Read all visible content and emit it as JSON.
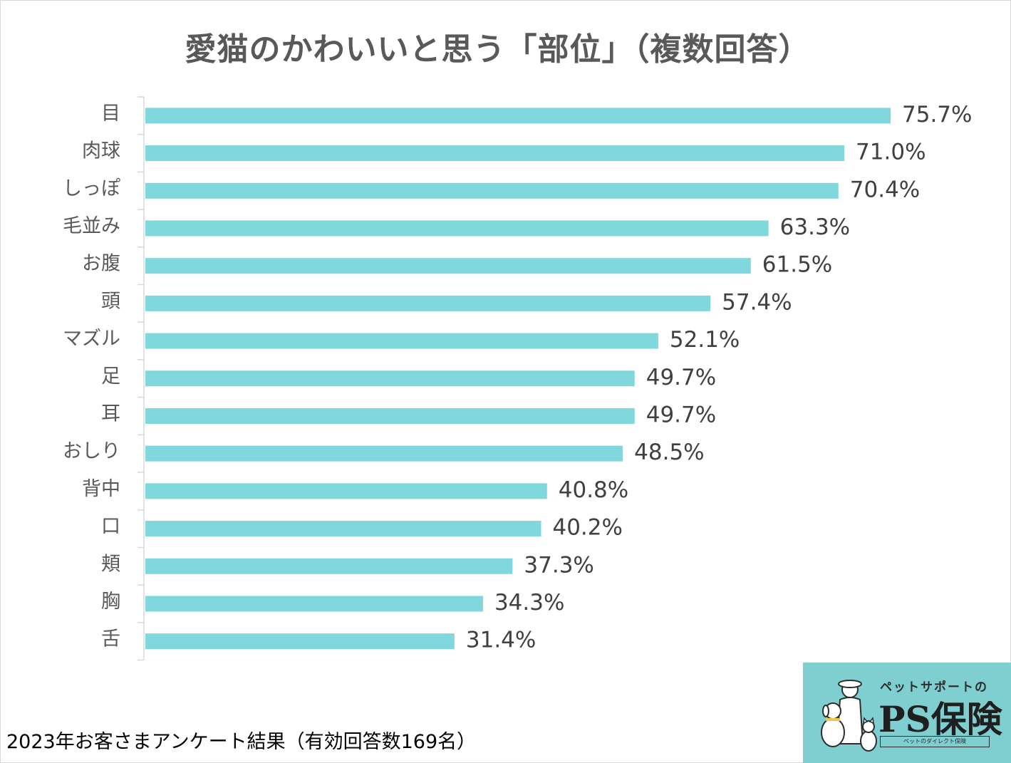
{
  "chart_data": {
    "type": "bar",
    "orientation": "horizontal",
    "title": "愛猫のかわいいと思う「部位」（複数回答）",
    "categories": [
      "目",
      "肉球",
      "しっぽ",
      "毛並み",
      "お腹",
      "頭",
      "マズル",
      "足",
      "耳",
      "おしり",
      "背中",
      "口",
      "頬",
      "胸",
      "舌"
    ],
    "values": [
      75.7,
      71.0,
      70.4,
      63.3,
      61.5,
      57.4,
      52.1,
      49.7,
      49.7,
      48.5,
      40.8,
      40.2,
      37.3,
      34.3,
      31.4
    ],
    "data_labels": [
      "75.7%",
      "71.0%",
      "70.4%",
      "63.3%",
      "61.5%",
      "57.4%",
      "52.1%",
      "49.7%",
      "49.7%",
      "48.5%",
      "40.8%",
      "40.2%",
      "37.3%",
      "34.3%",
      "31.4%"
    ],
    "unit": "%",
    "xlim": [
      0,
      100
    ],
    "grid": false,
    "legend": "none",
    "bar_color": "#80d8dc"
  },
  "footnote": "2023年お客さまアンケート結果（有効回答数169名）",
  "logo": {
    "tagline": "ペットサポートの",
    "name": "PS保険",
    "subtitle": "ペットのダイレクト保険",
    "background_color": "#7fcfd1",
    "icon": "dog-cat-and-owner-illustration"
  }
}
